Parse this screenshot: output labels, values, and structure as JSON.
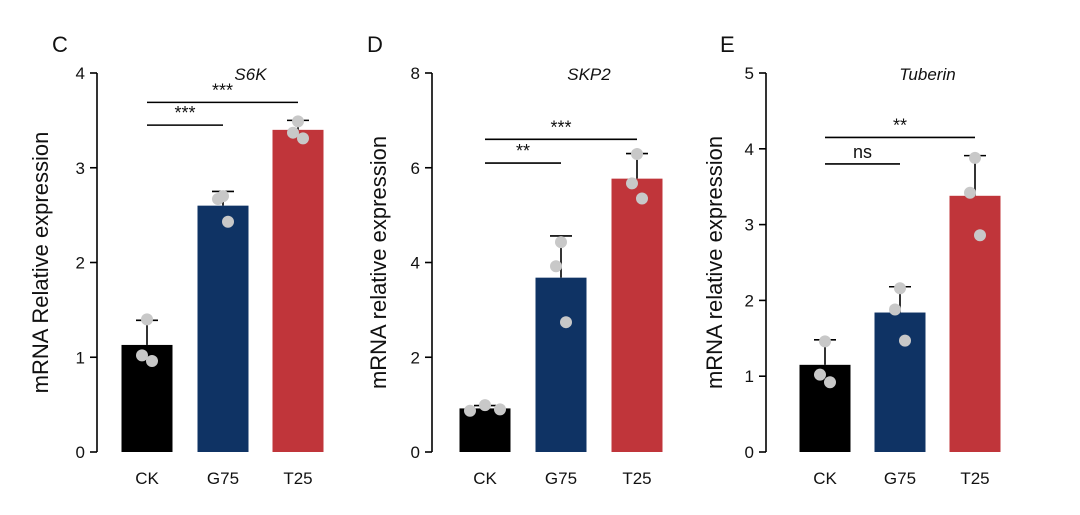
{
  "chart_data": [
    {
      "panel": "C",
      "type": "bar",
      "title": "S6K",
      "xlabel": "",
      "ylabel": "mRNA Relative expression",
      "categories": [
        "CK",
        "G75",
        "T25"
      ],
      "values": [
        1.13,
        2.6,
        3.4
      ],
      "errors": [
        0.26,
        0.15,
        0.1
      ],
      "points": [
        [
          1.4,
          1.02,
          0.96
        ],
        [
          2.7,
          2.67,
          2.43
        ],
        [
          3.49,
          3.37,
          3.31
        ]
      ],
      "colors": [
        "#000000",
        "#0f3364",
        "#c0353a"
      ],
      "ylim": [
        0,
        4
      ],
      "yticks": [
        0,
        1,
        2,
        3,
        4
      ],
      "comparisons": [
        {
          "from": 0,
          "to": 1,
          "y": 3.45,
          "label": "***"
        },
        {
          "from": 0,
          "to": 2,
          "y": 3.69,
          "label": "***"
        }
      ]
    },
    {
      "panel": "D",
      "type": "bar",
      "title": "SKP2",
      "xlabel": "",
      "ylabel": "mRNA relative expression",
      "categories": [
        "CK",
        "G75",
        "T25"
      ],
      "values": [
        0.92,
        3.68,
        5.77
      ],
      "errors": [
        0.06,
        0.88,
        0.53
      ],
      "points": [
        [
          0.87,
          0.99,
          0.9
        ],
        [
          4.43,
          3.92,
          2.74
        ],
        [
          6.29,
          5.67,
          5.35
        ]
      ],
      "colors": [
        "#000000",
        "#0f3364",
        "#c0353a"
      ],
      "ylim": [
        0,
        8
      ],
      "yticks": [
        0,
        2,
        4,
        6,
        8
      ],
      "comparisons": [
        {
          "from": 0,
          "to": 1,
          "y": 6.1,
          "label": "**"
        },
        {
          "from": 0,
          "to": 2,
          "y": 6.6,
          "label": "***"
        }
      ]
    },
    {
      "panel": "E",
      "type": "bar",
      "title": "Tuberin",
      "xlabel": "",
      "ylabel": "mRNA relative expression",
      "categories": [
        "CK",
        "G75",
        "T25"
      ],
      "values": [
        1.15,
        1.84,
        3.38
      ],
      "errors": [
        0.33,
        0.34,
        0.53
      ],
      "points": [
        [
          1.46,
          1.02,
          0.92
        ],
        [
          2.16,
          1.88,
          1.47
        ],
        [
          3.88,
          3.42,
          2.86
        ]
      ],
      "colors": [
        "#000000",
        "#0f3364",
        "#c0353a"
      ],
      "ylim": [
        0,
        5
      ],
      "yticks": [
        0,
        1,
        2,
        3,
        4,
        5
      ],
      "comparisons": [
        {
          "from": 0,
          "to": 1,
          "y": 3.8,
          "label": "ns"
        },
        {
          "from": 0,
          "to": 2,
          "y": 4.15,
          "label": "**"
        }
      ]
    }
  ]
}
